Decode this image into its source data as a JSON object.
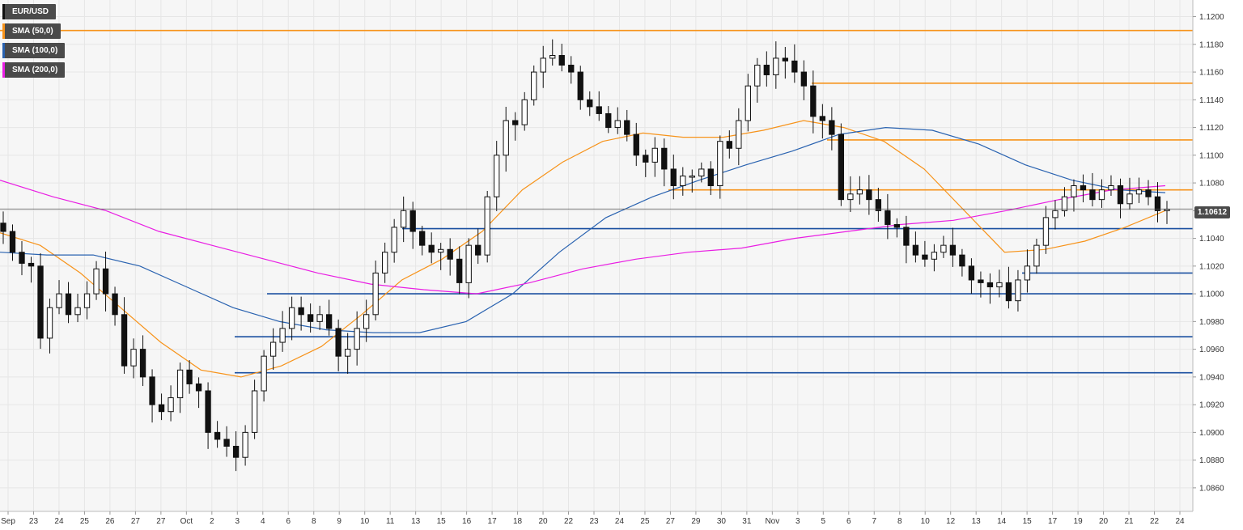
{
  "legend": {
    "symbol": "EUR/USD",
    "items": [
      {
        "label": "SMA (50,0)",
        "color": "#f7931a"
      },
      {
        "label": "SMA (100,0)",
        "color": "#2962b0"
      },
      {
        "label": "SMA (200,0)",
        "color": "#e91ee3"
      }
    ]
  },
  "chart_data": {
    "type": "candlestick",
    "title": "EUR/USD",
    "last_price_label": "1.10612",
    "last_price": 1.10612,
    "y_range": [
      1.0843,
      1.1212
    ],
    "y_ticks": [
      "1.1200",
      "1.1180",
      "1.1160",
      "1.1140",
      "1.1120",
      "1.1100",
      "1.1080",
      "1.1060",
      "1.1040",
      "1.1020",
      "1.1000",
      "1.0980",
      "1.0960",
      "1.0940",
      "1.0920",
      "1.0900",
      "1.0880",
      "1.0860"
    ],
    "x_ticks": [
      "Sep",
      "23",
      "24",
      "25",
      "26",
      "27",
      "27",
      "Oct",
      "2",
      "3",
      "4",
      "6",
      "8",
      "9",
      "10",
      "11",
      "13",
      "15",
      "16",
      "17",
      "18",
      "20",
      "22",
      "23",
      "24",
      "25",
      "27",
      "29",
      "30",
      "31",
      "Nov",
      "3",
      "5",
      "6",
      "7",
      "8",
      "10",
      "12",
      "13",
      "14",
      "15",
      "17",
      "19",
      "20",
      "21",
      "22",
      "24"
    ],
    "grid": true,
    "horizontal_levels": [
      {
        "value": 1.119,
        "color": "#f7931a"
      },
      {
        "value": 1.1152,
        "color": "#f7931a"
      },
      {
        "value": 1.1111,
        "color": "#f7931a"
      },
      {
        "value": 1.1075,
        "color": "#f7931a"
      },
      {
        "value": 1.1047,
        "color": "#1a4fa0"
      },
      {
        "value": 1.1015,
        "color": "#1a4fa0"
      },
      {
        "value": 1.1,
        "color": "#1a4fa0"
      },
      {
        "value": 1.0969,
        "color": "#1a4fa0"
      },
      {
        "value": 1.0943,
        "color": "#1a4fa0"
      }
    ],
    "ohlc_path": [
      1.1045,
      1.103,
      1.1022,
      1.102,
      1.0968,
      1.099,
      1.1,
      1.0985,
      1.099,
      1.1,
      1.1018,
      1.1,
      1.0985,
      1.0948,
      1.096,
      1.094,
      1.092,
      1.0915,
      1.0925,
      1.0945,
      1.0935,
      1.093,
      1.09,
      1.0895,
      1.089,
      1.0882,
      1.09,
      1.093,
      1.0955,
      1.0965,
      1.0975,
      1.099,
      1.0985,
      1.098,
      1.0985,
      1.0975,
      1.0955,
      1.096,
      1.0975,
      1.0985,
      1.1015,
      1.103,
      1.1048,
      1.106,
      1.1045,
      1.1035,
      1.103,
      1.1032,
      1.1025,
      1.1008,
      1.1035,
      1.1028,
      1.107,
      1.11,
      1.1125,
      1.1122,
      1.114,
      1.116,
      1.117,
      1.1172,
      1.1165,
      1.116,
      1.114,
      1.1135,
      1.113,
      1.112,
      1.1125,
      1.1115,
      1.11,
      1.1095,
      1.1105,
      1.109,
      1.1078,
      1.1085,
      1.1085,
      1.109,
      1.1078,
      1.111,
      1.1105,
      1.1125,
      1.115,
      1.1165,
      1.1158,
      1.117,
      1.1168,
      1.116,
      1.115,
      1.1128,
      1.1125,
      1.1115,
      1.1068,
      1.1072,
      1.1075,
      1.1068,
      1.106,
      1.105,
      1.1048,
      1.1035,
      1.1028,
      1.1025,
      1.103,
      1.1035,
      1.1028,
      1.102,
      1.101,
      1.1008,
      1.1005,
      1.1008,
      1.0995,
      1.101,
      1.102,
      1.1035,
      1.1055,
      1.106,
      1.107,
      1.1078,
      1.1075,
      1.1068,
      1.1075,
      1.1078,
      1.1065,
      1.1072,
      1.1075,
      1.107,
      1.106,
      1.1061
    ],
    "series": [
      {
        "name": "SMA (50,0)",
        "color": "#f7931a",
        "values": [
          1.1044,
          1.1035,
          1.1015,
          1.099,
          1.0965,
          1.0945,
          1.094,
          1.0948,
          1.0962,
          1.0985,
          1.101,
          1.1025,
          1.1045,
          1.1075,
          1.1095,
          1.111,
          1.1116,
          1.1113,
          1.1113,
          1.1118,
          1.1125,
          1.112,
          1.111,
          1.109,
          1.106,
          1.103,
          1.1032,
          1.1038,
          1.1048,
          1.106
        ]
      },
      {
        "name": "SMA (100,0)",
        "color": "#2962b0",
        "values": [
          1.103,
          1.1028,
          1.1028,
          1.102,
          1.1005,
          1.099,
          1.098,
          1.0974,
          1.0972,
          1.0972,
          1.098,
          1.1,
          1.103,
          1.1055,
          1.107,
          1.1082,
          1.1093,
          1.1103,
          1.1115,
          1.112,
          1.1118,
          1.1108,
          1.1093,
          1.1082,
          1.1075,
          1.1073
        ]
      },
      {
        "name": "SMA (200,0)",
        "color": "#e91ee3",
        "values": [
          1.1082,
          1.107,
          1.106,
          1.1045,
          1.1035,
          1.1025,
          1.1015,
          1.1007,
          1.1003,
          1.1,
          1.1008,
          1.1018,
          1.1025,
          1.103,
          1.1033,
          1.104,
          1.1045,
          1.105,
          1.1053,
          1.106,
          1.1068,
          1.1075,
          1.1078
        ]
      }
    ]
  }
}
